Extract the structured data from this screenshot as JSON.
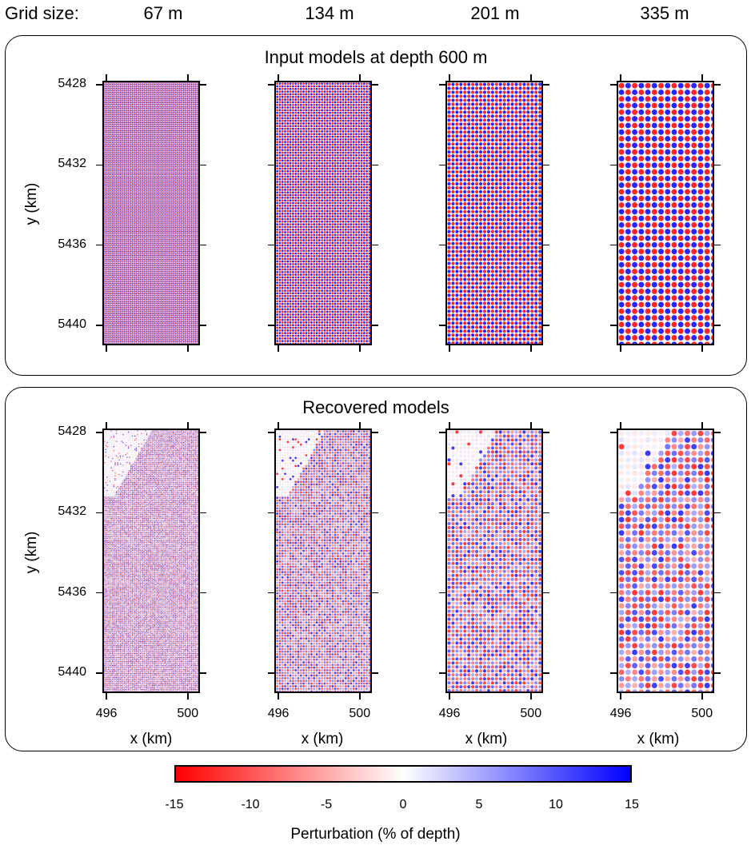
{
  "header": {
    "grid_size_label": "Grid size:",
    "grid_sizes": [
      "67 m",
      "134 m",
      "201 m",
      "335 m"
    ]
  },
  "panels": {
    "input_title": "Input models at depth 600 m",
    "recovered_title": "Recovered models"
  },
  "axes": {
    "ylabel": "y (km)",
    "xlabel": "x (km)",
    "y_ticks": [
      "5440",
      "5436",
      "5432",
      "5428"
    ],
    "x_ticks": [
      "496",
      "500"
    ]
  },
  "colorbar": {
    "title": "Perturbation (% of depth)",
    "ticks": [
      "-15",
      "-10",
      "-5",
      "0",
      "5",
      "10",
      "15"
    ],
    "colors": {
      "negative": "#ff0000",
      "zero": "#ffffff",
      "positive": "#0000ff"
    }
  },
  "chart_data": {
    "type": "heatmap",
    "description_of_series": "checkerboard resolution test",
    "x_range_km": [
      495.8,
      500.6
    ],
    "y_range_km": [
      5427,
      5440.2
    ],
    "x_ticks": [
      496,
      500
    ],
    "y_ticks": [
      5428,
      5432,
      5436,
      5440
    ],
    "grid_sizes_m": [
      67,
      134,
      201,
      335
    ],
    "checker_period_m": [
      67,
      134,
      201,
      335
    ],
    "color_scale": {
      "min": -15,
      "max": 15,
      "cmap": "red-white-blue"
    },
    "rows": [
      "Input models at depth 600 m",
      "Recovered models"
    ]
  }
}
